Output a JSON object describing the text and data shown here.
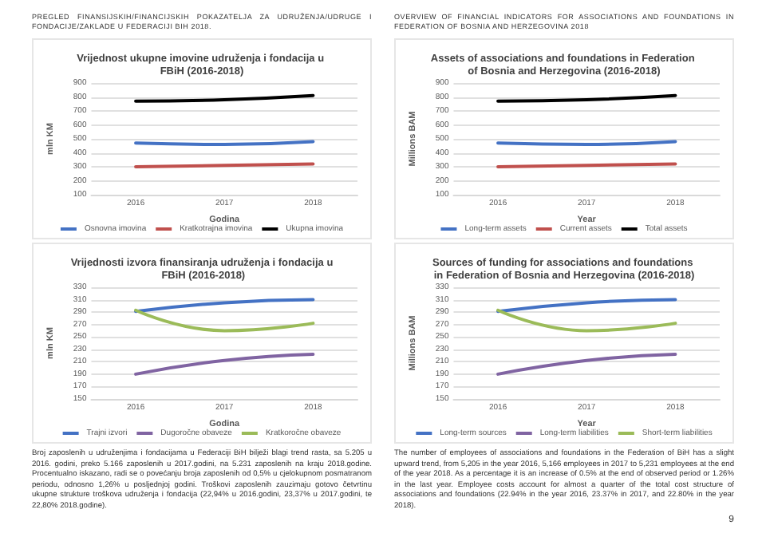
{
  "chart_data": [
    {
      "type": "line",
      "title": "Vrijednost ukupne imovine udruženja i fondacija u FBiH (2016-2018)",
      "xlabel": "Godina",
      "ylabel": "mln KM",
      "categories": [
        "2016",
        "2017",
        "2018"
      ],
      "ylim": [
        100,
        900
      ],
      "yticks": [
        100,
        200,
        300,
        400,
        500,
        600,
        700,
        800,
        900
      ],
      "grid": "y",
      "legend": "bottom",
      "marker": "none",
      "line_style": "solid",
      "annotations": [
        "PREGLED FINANSIJSKIH/FINANCIJSKIH POKAZATELJA ZA UDRUŽENJA/UDRUGE I FONDACIJE/ZAKLADE U FEDERACIJI BIH 2018."
      ],
      "series": [
        {
          "name": "Osnovna imovina",
          "color": "#4472c4",
          "values": [
            470,
            460,
            480
          ]
        },
        {
          "name": "Kratkotrajna imovina",
          "color": "#c0504d",
          "values": [
            300,
            310,
            320
          ]
        },
        {
          "name": "Ukupna imovina",
          "color": "#000000",
          "values": [
            770,
            780,
            810
          ]
        }
      ]
    },
    {
      "type": "line",
      "title": "Assets of associations and foundations in Federation of Bosnia and Herzegovina (2016-2018)",
      "xlabel": "Year",
      "ylabel": "Millions BAM",
      "categories": [
        "2016",
        "2017",
        "2018"
      ],
      "ylim": [
        100,
        900
      ],
      "yticks": [
        100,
        200,
        300,
        400,
        500,
        600,
        700,
        800,
        900
      ],
      "grid": "y",
      "legend": "bottom",
      "marker": "none",
      "line_style": "solid",
      "annotations": [
        "OVERVIEW OF FINANCIAL INDICATORS FOR ASSOCIATIONS AND FOUNDATIONS IN FEDERATION OF BOSNIA AND HERZEGOVINA 2018"
      ],
      "series": [
        {
          "name": "Long-term assets",
          "color": "#4472c4",
          "values": [
            470,
            460,
            480
          ]
        },
        {
          "name": "Current assets",
          "color": "#c0504d",
          "values": [
            300,
            310,
            320
          ]
        },
        {
          "name": "Total assets",
          "color": "#000000",
          "values": [
            770,
            780,
            810
          ]
        }
      ]
    },
    {
      "type": "line",
      "title": "Vrijednosti izvora finansiranja udruženja i fondacija u FBiH (2016-2018)",
      "xlabel": "Godina",
      "ylabel": "mln KM",
      "categories": [
        "2016",
        "2017",
        "2018"
      ],
      "ylim": [
        150,
        330
      ],
      "yticks": [
        150,
        170,
        190,
        210,
        230,
        250,
        270,
        290,
        310,
        330
      ],
      "grid": "y",
      "legend": "bottom",
      "marker": "none",
      "line_style": "solid",
      "annotations": [
        "Broj zaposlenih u udruženjima i fondacijama u Federaciji BiH bilježi blagi trend rasta, sa 5.205 u 2016. godini, preko 5.166 zaposlenih u 2017.godini, na 5.231 zaposlenih na kraju 2018.godine. Procentualno iskazano, radi se o povećanju broja zaposlenih od 0,5% u cjelokupnom posmatranom periodu, odnosno 1,26% u posljednjoj godini. Troškovi zaposlenih zauzimaju gotovo četvrtinu ukupne strukture troškova udruženja i fondacija (22,94% u 2016.godini, 23,37% u 2017.godini, te 22,80% 2018.godine)."
      ],
      "series": [
        {
          "name": "Trajni izvori",
          "color": "#4472c4",
          "values": [
            291,
            305,
            310
          ]
        },
        {
          "name": "Dugoročne obaveze",
          "color": "#8064a2",
          "values": [
            190,
            212,
            222
          ]
        },
        {
          "name": "Kratkoročne obaveze",
          "color": "#9bbb59",
          "values": [
            293,
            260,
            272
          ]
        }
      ]
    },
    {
      "type": "line",
      "title": "Sources of funding for associations and foundations in Federation of Bosnia and Herzegovina (2016-2018)",
      "xlabel": "Year",
      "ylabel": "Millions BAM",
      "categories": [
        "2016",
        "2017",
        "2018"
      ],
      "ylim": [
        150,
        330
      ],
      "yticks": [
        150,
        170,
        190,
        210,
        230,
        250,
        270,
        290,
        310,
        330
      ],
      "grid": "y",
      "legend": "bottom",
      "marker": "none",
      "line_style": "solid",
      "annotations": [
        "The number of employees of associations and foundations in the Federation of BiH has a slight upward trend, from 5,205 in the year 2016, 5,166 employees in 2017 to 5,231 employees at the end of the year 2018. As a percentage it is an increase of 0.5% at the end of observed period or 1.26% in the last year. Employee costs account for almost a quarter of the total cost structure of associations and foundations (22.94% in the year 2016, 23.37% in 2017, and 22.80% in the year 2018).",
        "9"
      ],
      "series": [
        {
          "name": "Long-term sources",
          "color": "#4472c4",
          "values": [
            291,
            305,
            310
          ]
        },
        {
          "name": "Long-term liabilities",
          "color": "#8064a2",
          "values": [
            190,
            212,
            222
          ]
        },
        {
          "name": "Short-term liabilities",
          "color": "#9bbb59",
          "values": [
            293,
            260,
            272
          ]
        }
      ]
    }
  ]
}
